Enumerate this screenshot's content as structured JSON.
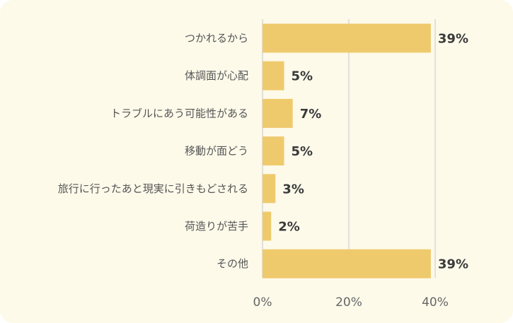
{
  "chart_data": {
    "type": "bar",
    "orientation": "horizontal",
    "categories": [
      "つかれるから",
      "体調面が心配",
      "トラブルにあう可能性がある",
      "移動が面どう",
      "旅行に行ったあと現実に引きもどされる",
      "荷造りが苦手",
      "その他"
    ],
    "values": [
      39,
      5,
      7,
      5,
      3,
      2,
      39
    ],
    "value_labels": [
      "39%",
      "5%",
      "7%",
      "5%",
      "3%",
      "2%",
      "39%"
    ],
    "xlim": [
      0,
      40
    ],
    "xticks": [
      0,
      20,
      40
    ],
    "xtick_labels": [
      "0%",
      "20%",
      "40%"
    ],
    "grid": true,
    "legend": "none"
  },
  "colors": {
    "bar": "#efca6d",
    "background": "#fdfaea",
    "grid": "#d8d8d8"
  }
}
